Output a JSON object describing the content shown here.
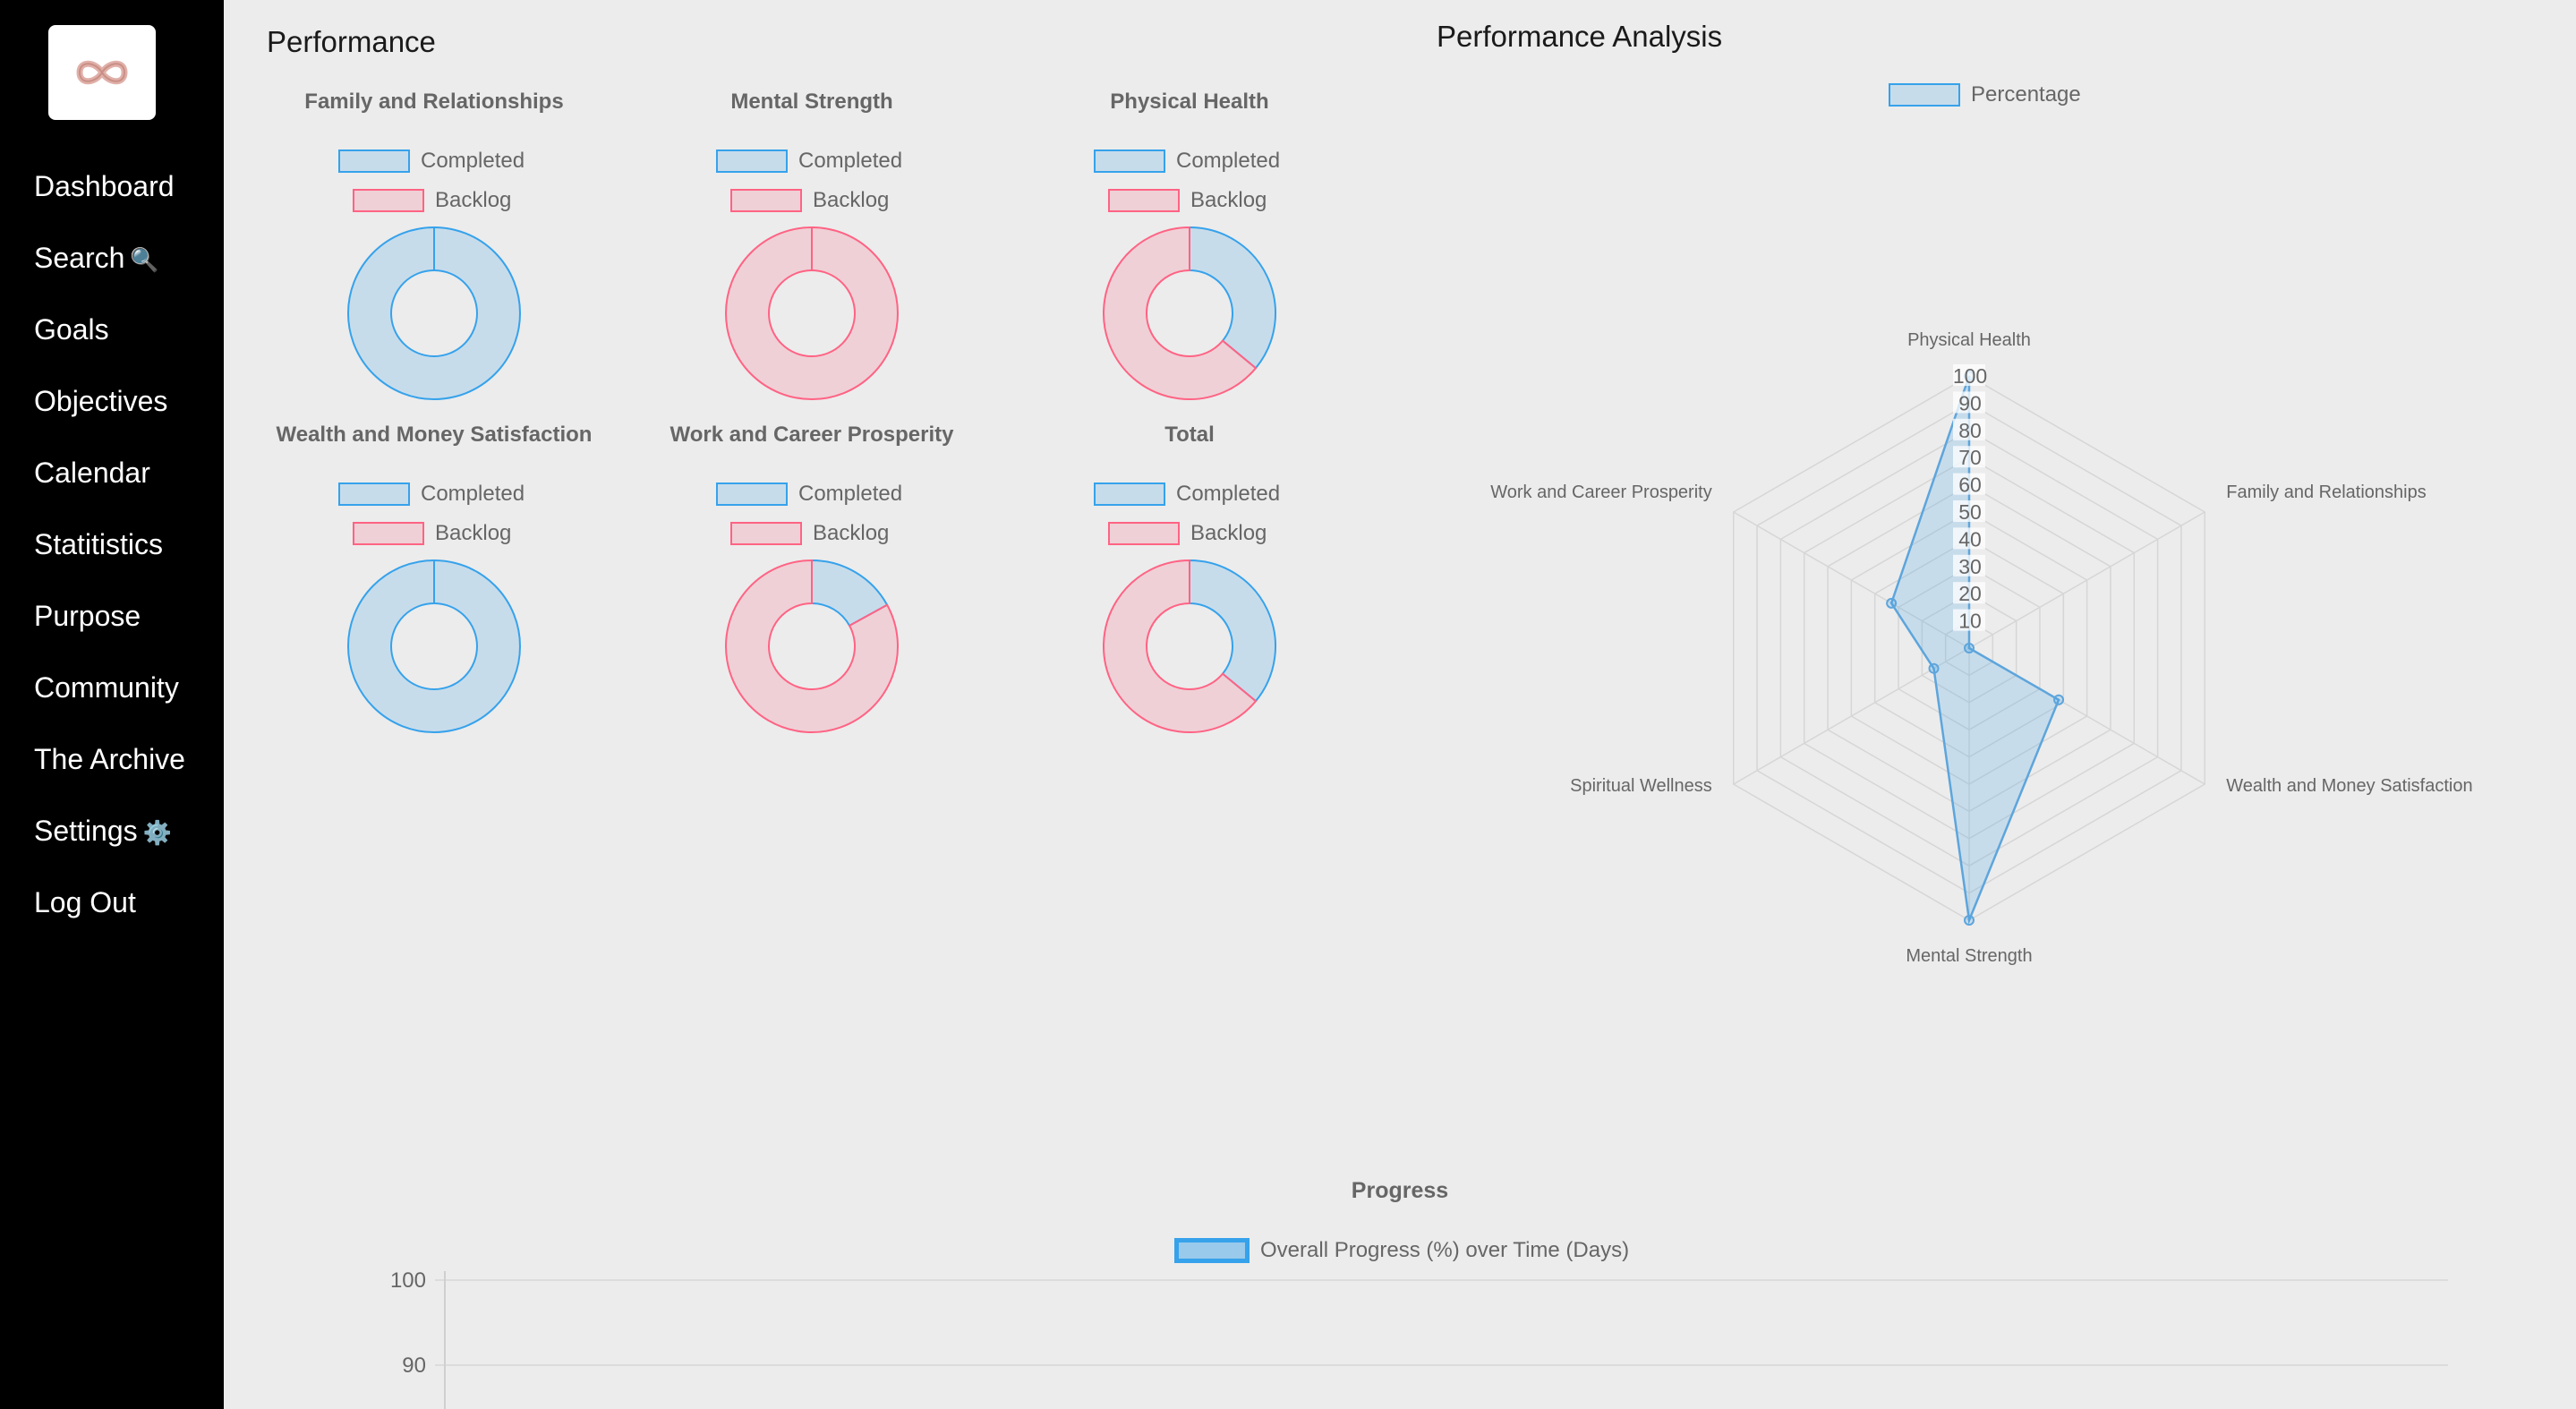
{
  "sidebar": {
    "items": [
      {
        "label": "Dashboard",
        "icon": ""
      },
      {
        "label": "Search",
        "icon": "🔍"
      },
      {
        "label": "Goals",
        "icon": ""
      },
      {
        "label": "Objectives",
        "icon": ""
      },
      {
        "label": "Calendar",
        "icon": ""
      },
      {
        "label": "Statitistics",
        "icon": ""
      },
      {
        "label": "Purpose",
        "icon": ""
      },
      {
        "label": "Community",
        "icon": ""
      },
      {
        "label": "The Archive",
        "icon": ""
      },
      {
        "label": "Settings",
        "icon": "⚙️"
      },
      {
        "label": "Log Out",
        "icon": ""
      }
    ],
    "logo_icon": "infinity-logo-icon"
  },
  "performance": {
    "title": "Performance",
    "legend": {
      "completed": "Completed",
      "backlog": "Backlog"
    },
    "colors": {
      "completed_fill": "rgba(54,162,235,0.2)",
      "completed_border": "#36a2eb",
      "backlog_fill": "rgba(255,99,132,0.2)",
      "backlog_border": "#ff6384"
    }
  },
  "analysis": {
    "title": "Performance Analysis",
    "legend": "Percentage"
  },
  "progress": {
    "title": "Progress",
    "legend": "Overall Progress (%) over Time (Days)"
  },
  "chart_data": [
    {
      "type": "pie",
      "title": "Family and Relationships",
      "labels": [
        "Completed",
        "Backlog"
      ],
      "values": [
        100,
        0
      ]
    },
    {
      "type": "pie",
      "title": "Mental Strength",
      "labels": [
        "Completed",
        "Backlog"
      ],
      "values": [
        0,
        100
      ]
    },
    {
      "type": "pie",
      "title": "Physical Health",
      "labels": [
        "Completed",
        "Backlog"
      ],
      "values": [
        36,
        64
      ]
    },
    {
      "type": "pie",
      "title": "Wealth and Money Satisfaction",
      "labels": [
        "Completed",
        "Backlog"
      ],
      "values": [
        100,
        0
      ]
    },
    {
      "type": "pie",
      "title": "Work and Career Prosperity",
      "labels": [
        "Completed",
        "Backlog"
      ],
      "values": [
        17,
        83
      ]
    },
    {
      "type": "pie",
      "title": "Total",
      "labels": [
        "Completed",
        "Backlog"
      ],
      "values": [
        36,
        64
      ]
    },
    {
      "type": "radar",
      "labels": [
        "Physical Health",
        "Family and Relationships",
        "Wealth and Money Satisfaction",
        "Mental Strength",
        "Spiritual Wellness",
        "Work and Career Prosperity"
      ],
      "series": [
        {
          "name": "Percentage",
          "values": [
            100,
            0,
            38,
            100,
            15,
            33
          ]
        }
      ],
      "ticks": [
        10,
        20,
        30,
        40,
        50,
        60,
        70,
        80,
        90,
        100
      ],
      "range": [
        0,
        100
      ]
    },
    {
      "type": "line",
      "series": [
        {
          "name": "Overall Progress (%) over Time (Days)",
          "values": []
        }
      ],
      "yticks": [
        100,
        90
      ]
    }
  ]
}
